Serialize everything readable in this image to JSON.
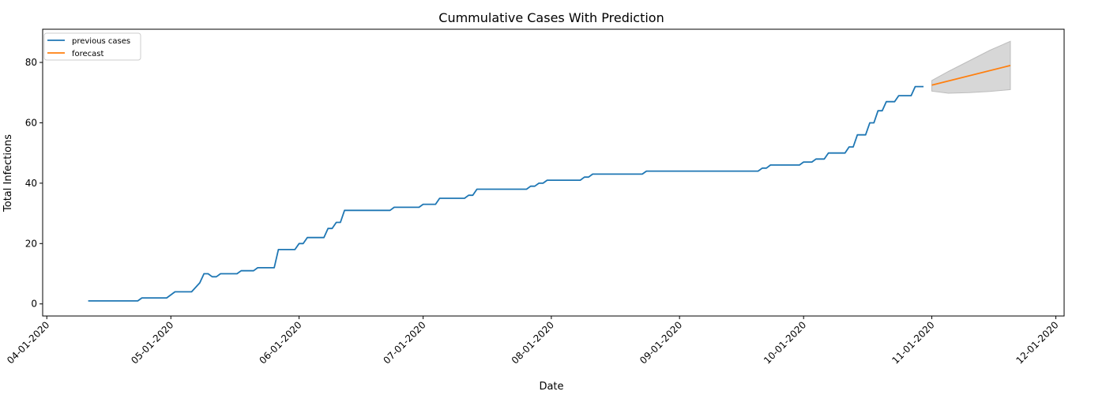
{
  "chart_data": {
    "type": "line",
    "title": "Cummulative Cases With Prediction",
    "xlabel": "Date",
    "ylabel": "Total Infections",
    "x_axis": "date",
    "xlim": [
      "2020-03-31",
      "2020-12-03"
    ],
    "ylim": [
      -4,
      91
    ],
    "x_ticks": [
      {
        "date": "2020-04-01",
        "label": "04-01-2020"
      },
      {
        "date": "2020-05-01",
        "label": "05-01-2020"
      },
      {
        "date": "2020-06-01",
        "label": "06-01-2020"
      },
      {
        "date": "2020-07-01",
        "label": "07-01-2020"
      },
      {
        "date": "2020-08-01",
        "label": "08-01-2020"
      },
      {
        "date": "2020-09-01",
        "label": "09-01-2020"
      },
      {
        "date": "2020-10-01",
        "label": "10-01-2020"
      },
      {
        "date": "2020-11-01",
        "label": "11-01-2020"
      },
      {
        "date": "2020-12-01",
        "label": "12-01-2020"
      }
    ],
    "y_ticks": [
      0,
      20,
      40,
      60,
      80
    ],
    "grid": false,
    "legend": {
      "position": "top-left",
      "entries": [
        "previous cases",
        "forecast"
      ]
    },
    "series": [
      {
        "name": "previous cases",
        "color": "#1f77b4",
        "points": [
          [
            "2020-04-11",
            1
          ],
          [
            "2020-04-23",
            1
          ],
          [
            "2020-04-24",
            2
          ],
          [
            "2020-04-30",
            2
          ],
          [
            "2020-05-02",
            4
          ],
          [
            "2020-05-06",
            4
          ],
          [
            "2020-05-08",
            7
          ],
          [
            "2020-05-09",
            10
          ],
          [
            "2020-05-10",
            10
          ],
          [
            "2020-05-11",
            9
          ],
          [
            "2020-05-12",
            9
          ],
          [
            "2020-05-13",
            10
          ],
          [
            "2020-05-17",
            10
          ],
          [
            "2020-05-18",
            11
          ],
          [
            "2020-05-21",
            11
          ],
          [
            "2020-05-22",
            12
          ],
          [
            "2020-05-26",
            12
          ],
          [
            "2020-05-27",
            18
          ],
          [
            "2020-05-31",
            18
          ],
          [
            "2020-06-01",
            20
          ],
          [
            "2020-06-02",
            20
          ],
          [
            "2020-06-03",
            22
          ],
          [
            "2020-06-07",
            22
          ],
          [
            "2020-06-08",
            25
          ],
          [
            "2020-06-09",
            25
          ],
          [
            "2020-06-10",
            27
          ],
          [
            "2020-06-11",
            27
          ],
          [
            "2020-06-12",
            31
          ],
          [
            "2020-06-23",
            31
          ],
          [
            "2020-06-24",
            32
          ],
          [
            "2020-06-30",
            32
          ],
          [
            "2020-07-01",
            33
          ],
          [
            "2020-07-04",
            33
          ],
          [
            "2020-07-05",
            35
          ],
          [
            "2020-07-11",
            35
          ],
          [
            "2020-07-12",
            36
          ],
          [
            "2020-07-13",
            36
          ],
          [
            "2020-07-14",
            38
          ],
          [
            "2020-07-26",
            38
          ],
          [
            "2020-07-27",
            39
          ],
          [
            "2020-07-28",
            39
          ],
          [
            "2020-07-29",
            40
          ],
          [
            "2020-07-30",
            40
          ],
          [
            "2020-07-31",
            41
          ],
          [
            "2020-08-08",
            41
          ],
          [
            "2020-08-09",
            42
          ],
          [
            "2020-08-10",
            42
          ],
          [
            "2020-08-11",
            43
          ],
          [
            "2020-08-23",
            43
          ],
          [
            "2020-08-24",
            44
          ],
          [
            "2020-09-20",
            44
          ],
          [
            "2020-09-21",
            45
          ],
          [
            "2020-09-22",
            45
          ],
          [
            "2020-09-23",
            46
          ],
          [
            "2020-09-30",
            46
          ],
          [
            "2020-10-01",
            47
          ],
          [
            "2020-10-03",
            47
          ],
          [
            "2020-10-04",
            48
          ],
          [
            "2020-10-06",
            48
          ],
          [
            "2020-10-07",
            50
          ],
          [
            "2020-10-11",
            50
          ],
          [
            "2020-10-12",
            52
          ],
          [
            "2020-10-13",
            52
          ],
          [
            "2020-10-14",
            56
          ],
          [
            "2020-10-16",
            56
          ],
          [
            "2020-10-17",
            60
          ],
          [
            "2020-10-18",
            60
          ],
          [
            "2020-10-19",
            64
          ],
          [
            "2020-10-20",
            64
          ],
          [
            "2020-10-21",
            67
          ],
          [
            "2020-10-23",
            67
          ],
          [
            "2020-10-24",
            69
          ],
          [
            "2020-10-27",
            69
          ],
          [
            "2020-10-28",
            72
          ],
          [
            "2020-10-30",
            72
          ]
        ]
      },
      {
        "name": "forecast",
        "color": "#ff7f0e",
        "points": [
          [
            "2020-11-01",
            72.5
          ],
          [
            "2020-11-20",
            79
          ]
        ]
      }
    ],
    "confidence_band": {
      "color": "#d3d3d3",
      "upper": [
        [
          "2020-11-01",
          74
        ],
        [
          "2020-11-05",
          77
        ],
        [
          "2020-11-10",
          80.5
        ],
        [
          "2020-11-15",
          84
        ],
        [
          "2020-11-20",
          87
        ]
      ],
      "lower": [
        [
          "2020-11-01",
          70.5
        ],
        [
          "2020-11-05",
          69.8
        ],
        [
          "2020-11-10",
          70
        ],
        [
          "2020-11-15",
          70.4
        ],
        [
          "2020-11-20",
          71
        ]
      ]
    }
  }
}
